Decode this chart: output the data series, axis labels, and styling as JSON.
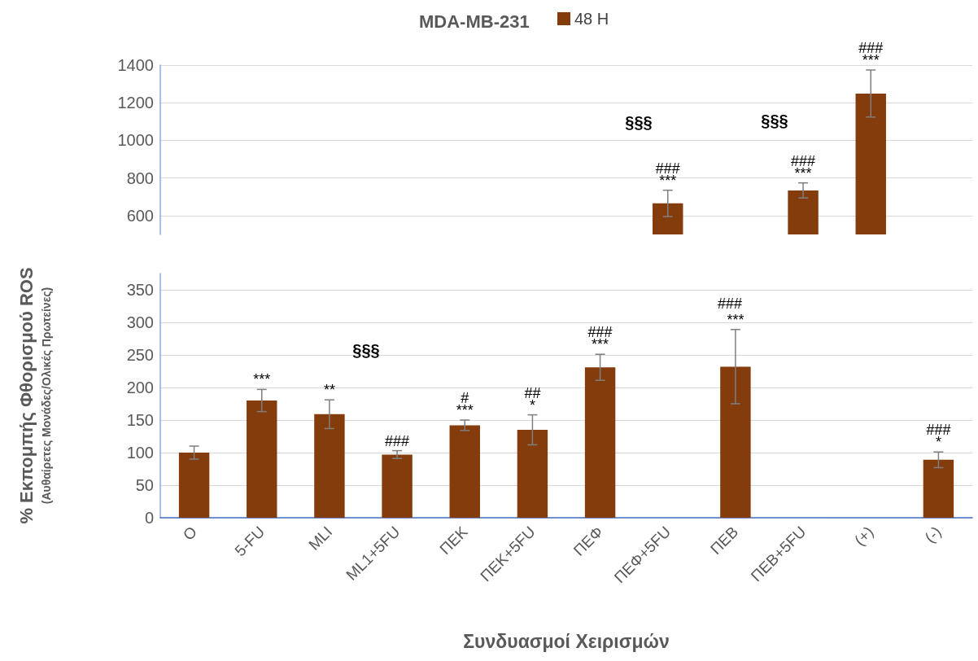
{
  "chart_data": [
    {
      "type": "bar",
      "title": "MDA-MB-231",
      "categories": [
        "O",
        "5-FU",
        "MLI",
        "ML1+5FU",
        "ΠΕΚ",
        "ΠΕΚ+5FU",
        "ΠΕΦ",
        "ΠΕΦ+5FU",
        "ΠΕΒ",
        "ΠΕΒ+5FU",
        "(+)",
        "(-)"
      ],
      "series": [
        {
          "name": "48 H",
          "color": "#843c0c",
          "values": [
            null,
            null,
            null,
            null,
            null,
            null,
            null,
            665,
            null,
            734,
            1249,
            null
          ],
          "errors": [
            null,
            null,
            null,
            null,
            null,
            null,
            null,
            70,
            null,
            40,
            125,
            null
          ]
        }
      ],
      "ylim": [
        500,
        1400
      ],
      "yticks": [
        600,
        800,
        1000,
        1200,
        1400
      ],
      "grid": "y",
      "legend": "top",
      "tick_labels": "y",
      "annotations": [
        {
          "text": "***",
          "x": "ΠΕΦ+5FU",
          "y": 665
        },
        {
          "text": "###",
          "x": "ΠΕΦ+5FU",
          "y": 665
        },
        {
          "text": "***",
          "x": "ΠΕΒ+5FU",
          "y": 734
        },
        {
          "text": "###",
          "x": "ΠΕΒ+5FU",
          "y": 734
        },
        {
          "text": "***",
          "x": "(+)",
          "y": 1249
        },
        {
          "text": "###",
          "x": "(+)",
          "y": 1249
        },
        "§§§",
        "§§§"
      ]
    },
    {
      "type": "bar",
      "xlabel": "Συνδυασμοί Χειρισμών",
      "ylabel": "% Εκπομπής Φθορισμού ROS\n(Αυθαίρετες Μονάδες/Ολικές Πρωτείνες)",
      "categories": [
        "O",
        "5-FU",
        "MLI",
        "ML1+5FU",
        "ΠΕΚ",
        "ΠΕΚ+5FU",
        "ΠΕΦ",
        "ΠΕΦ+5FU",
        "ΠΕΒ",
        "ΠΕΒ+5FU",
        "(+)",
        "(-)"
      ],
      "series": [
        {
          "color": "#843c0c",
          "values": [
            100,
            180,
            159,
            97,
            142,
            135,
            231,
            null,
            232,
            null,
            null,
            89
          ],
          "errors": [
            10,
            17,
            22,
            6,
            8,
            23,
            20,
            null,
            57,
            null,
            null,
            12
          ]
        }
      ],
      "ylim": [
        0,
        375
      ],
      "yticks": [
        0,
        50,
        100,
        150,
        200,
        250,
        300,
        350
      ],
      "grid": "y",
      "legend": false,
      "annotations": [
        {
          "text": "***",
          "x": "5-FU",
          "y": 180
        },
        {
          "text": "**",
          "x": "MLI",
          "y": 159
        },
        {
          "text": "###",
          "x": "ML1+5FU",
          "y": 97
        },
        {
          "text": "***",
          "x": "ΠΕΚ",
          "y": 142
        },
        {
          "text": "#",
          "x": "ΠΕΚ",
          "y": 142
        },
        {
          "text": "*",
          "x": "ΠΕΚ+5FU",
          "y": 135
        },
        {
          "text": "##",
          "x": "ΠΕΚ+5FU",
          "y": 135
        },
        {
          "text": "***",
          "x": "ΠΕΦ",
          "y": 231
        },
        {
          "text": "###",
          "x": "ΠΕΦ",
          "y": 231
        },
        {
          "text": "***",
          "x": "ΠΕΒ",
          "y": 232
        },
        "###",
        {
          "text": "*",
          "x": "(-)",
          "y": 89
        },
        {
          "text": "###",
          "x": "(-)",
          "y": 89
        },
        "§§§"
      ]
    }
  ]
}
